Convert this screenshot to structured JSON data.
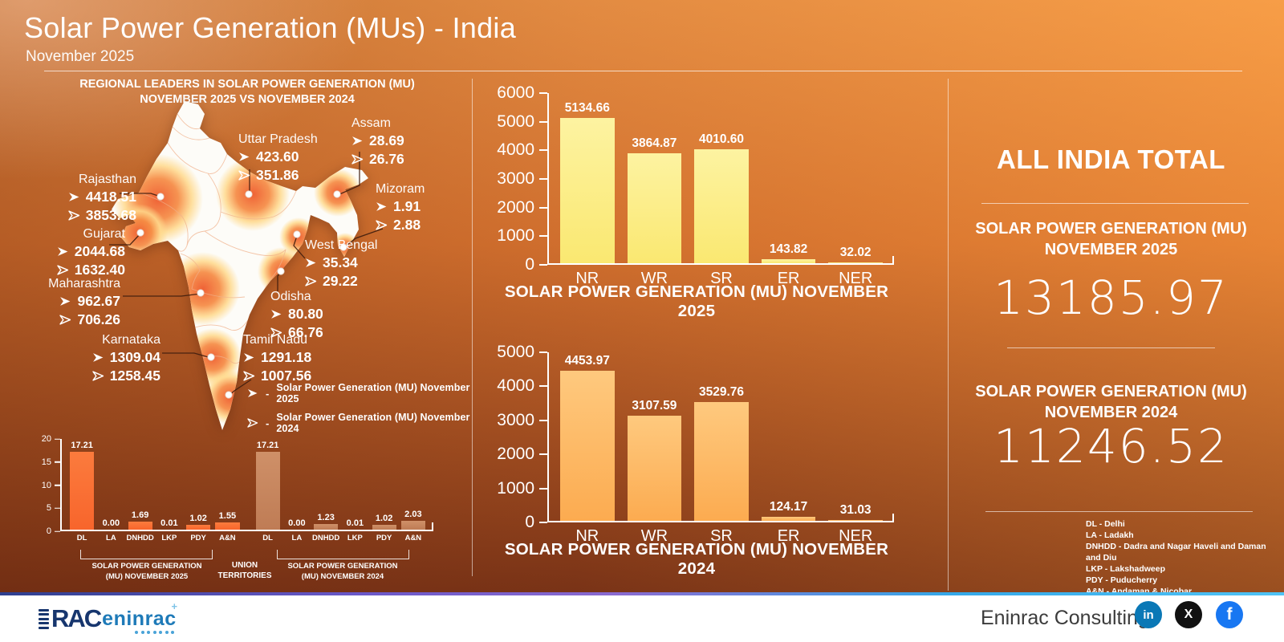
{
  "header": {
    "title": "Solar Power Generation (MUs) - India",
    "subtitle": "November 2025"
  },
  "map_section": {
    "title_line1": "REGIONAL LEADERS IN SOLAR POWER GENERATION (MU)",
    "title_line2": "NOVEMBER 2025 VS NOVEMBER 2024",
    "states": [
      {
        "name": "Rajasthan",
        "v2025": "4418.51",
        "v2024": "3853.68"
      },
      {
        "name": "Gujarat",
        "v2025": "2044.68",
        "v2024": "1632.40"
      },
      {
        "name": "Maharashtra",
        "v2025": "962.67",
        "v2024": "706.26"
      },
      {
        "name": "Karnataka",
        "v2025": "1309.04",
        "v2024": "1258.45"
      },
      {
        "name": "Uttar Pradesh",
        "v2025": "423.60",
        "v2024": "351.86"
      },
      {
        "name": "Assam",
        "v2025": "28.69",
        "v2024": "26.76"
      },
      {
        "name": "Mizoram",
        "v2025": "1.91",
        "v2024": "2.88"
      },
      {
        "name": "West Bengal",
        "v2025": "35.34",
        "v2024": "29.22"
      },
      {
        "name": "Odisha",
        "v2025": "80.80",
        "v2024": "66.76"
      },
      {
        "name": "Tamil Nadu",
        "v2025": "1291.18",
        "v2024": "1007.56"
      }
    ],
    "legend": [
      {
        "marker": "filled-arrow",
        "label": "Solar Power Generation (MU) November 2025"
      },
      {
        "marker": "outline-arrow",
        "label": "Solar Power Generation (MU) November 2024"
      }
    ]
  },
  "chart_data": [
    {
      "id": "union_territories_2025",
      "type": "bar",
      "categories": [
        "DL",
        "LA",
        "DNHDD",
        "LKP",
        "PDY",
        "A&N"
      ],
      "values": [
        17.21,
        0.0,
        1.69,
        0.01,
        1.02,
        1.55
      ],
      "title": "SOLAR POWER GENERATION (MU) NOVEMBER 2025",
      "ylabel": "",
      "xlabel": "",
      "ylim": [
        0,
        20
      ],
      "yticks": [
        0,
        5,
        10,
        15,
        20
      ],
      "bar_color": "#f96d31",
      "legend_position": "none",
      "grid": false
    },
    {
      "id": "union_territories_2024",
      "type": "bar",
      "categories": [
        "DL",
        "LA",
        "DNHDD",
        "LKP",
        "PDY",
        "A&N"
      ],
      "values": [
        17.21,
        0.0,
        1.23,
        0.01,
        1.02,
        2.03
      ],
      "title": "SOLAR POWER GENERATION (MU) NOVEMBER 2024",
      "ylabel": "",
      "xlabel": "",
      "ylim": [
        0,
        20
      ],
      "yticks": [
        0,
        5,
        10,
        15,
        20
      ],
      "bar_color": "#c8855d",
      "legend_position": "none",
      "grid": false
    },
    {
      "id": "regions_2025",
      "type": "bar",
      "categories": [
        "NR",
        "WR",
        "SR",
        "ER",
        "NER"
      ],
      "values": [
        5134.66,
        3864.87,
        4010.6,
        143.82,
        32.02
      ],
      "title": "SOLAR POWER GENERATION (MU) NOVEMBER 2025",
      "ylabel": "",
      "xlabel": "",
      "ylim": [
        0,
        6000
      ],
      "yticks": [
        0,
        1000,
        2000,
        3000,
        4000,
        5000,
        6000
      ],
      "bar_color": "#fbe97d",
      "legend_position": "none",
      "grid": false
    },
    {
      "id": "regions_2024",
      "type": "bar",
      "categories": [
        "NR",
        "WR",
        "SR",
        "ER",
        "NER"
      ],
      "values": [
        4453.97,
        3107.59,
        3529.76,
        124.17,
        31.03
      ],
      "title": "SOLAR POWER GENERATION (MU) NOVEMBER 2024",
      "ylabel": "",
      "xlabel": "",
      "ylim": [
        0,
        5000
      ],
      "yticks": [
        0,
        1000,
        2000,
        3000,
        4000,
        5000
      ],
      "bar_color": "#fdb55e",
      "legend_position": "none",
      "grid": false
    }
  ],
  "ut_section": {
    "center_label": "UNION TERRITORIES"
  },
  "totals": {
    "heading": "ALL INDIA TOTAL",
    "blocks": [
      {
        "label_line1": "SOLAR POWER GENERATION (MU)",
        "label_line2": "NOVEMBER 2025",
        "value": "13185.97"
      },
      {
        "label_line1": "SOLAR POWER GENERATION (MU)",
        "label_line2": "NOVEMBER 2024",
        "value": "11246.52"
      }
    ],
    "abbreviations": [
      "DL - Delhi",
      "LA - Ladakh",
      "DNHDD - Dadra and Nagar Haveli and Daman and Diu",
      "LKP - Lakshadweep",
      "PDY - Puducherry",
      "A&N - Andaman & Nicobar"
    ]
  },
  "footer": {
    "logo_prefix": "RAC",
    "logo_text": "eninrac",
    "company": "Eninrac Consulting",
    "social": [
      {
        "name": "linkedin",
        "glyph": "in",
        "color": "#0a78b6"
      },
      {
        "name": "x",
        "glyph": "X",
        "color": "#111111"
      },
      {
        "name": "facebook",
        "glyph": "f",
        "color": "#1877f2"
      }
    ]
  },
  "colors": {
    "bg_top_right": "#f8981f",
    "bg_bottom_left": "#6f2c15",
    "bar_regions_2025": "#fbe97d",
    "bar_regions_2024": "#fdb55e",
    "bar_ut_2025": "#f96d31",
    "bar_ut_2024": "#c8855d",
    "map_heat_core": "#ee5a2c",
    "map_heat_edge": "#ffd98c",
    "footer_strip_left": "#2e3f8f",
    "footer_strip_right": "#4fc3f5"
  }
}
